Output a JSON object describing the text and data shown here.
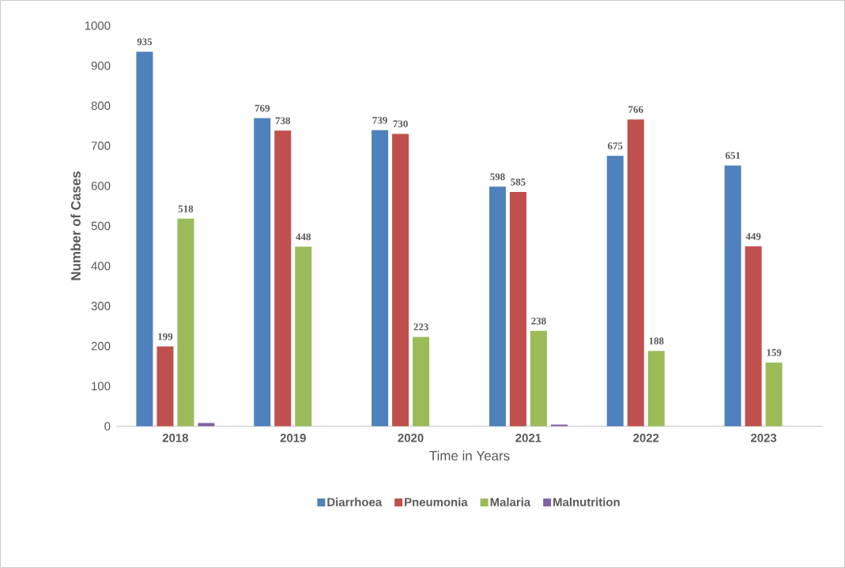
{
  "chart_data": {
    "type": "bar",
    "xlabel": "Time in Years",
    "ylabel": "Number of Cases",
    "categories": [
      "2018",
      "2019",
      "2020",
      "2021",
      "2022",
      "2023"
    ],
    "series": [
      {
        "name": "Diarrhoea",
        "color": "#4f81bd",
        "values": [
          935,
          769,
          739,
          598,
          675,
          651
        ],
        "value_labels": [
          "935",
          "769",
          "739",
          "598",
          "675",
          "651"
        ]
      },
      {
        "name": "Pneumonia",
        "color": "#c0504d",
        "values": [
          199,
          738,
          730,
          585,
          766,
          449
        ],
        "value_labels": [
          "199",
          "738",
          "730",
          "585",
          "766",
          "449"
        ]
      },
      {
        "name": "Malaria",
        "color": "#9bbb59",
        "values": [
          518,
          448,
          223,
          238,
          188,
          159
        ],
        "value_labels": [
          "518",
          "448",
          "223",
          "238",
          "188",
          "159"
        ]
      },
      {
        "name": "Malnutrition",
        "color": "#8064a2",
        "values": [
          8,
          0,
          0,
          4,
          0,
          0
        ]
      }
    ],
    "ylim": [
      0,
      1000
    ],
    "yticks": [
      0,
      100,
      200,
      300,
      400,
      500,
      600,
      700,
      800,
      900,
      1000
    ],
    "grid": false,
    "legend": "bottom"
  }
}
